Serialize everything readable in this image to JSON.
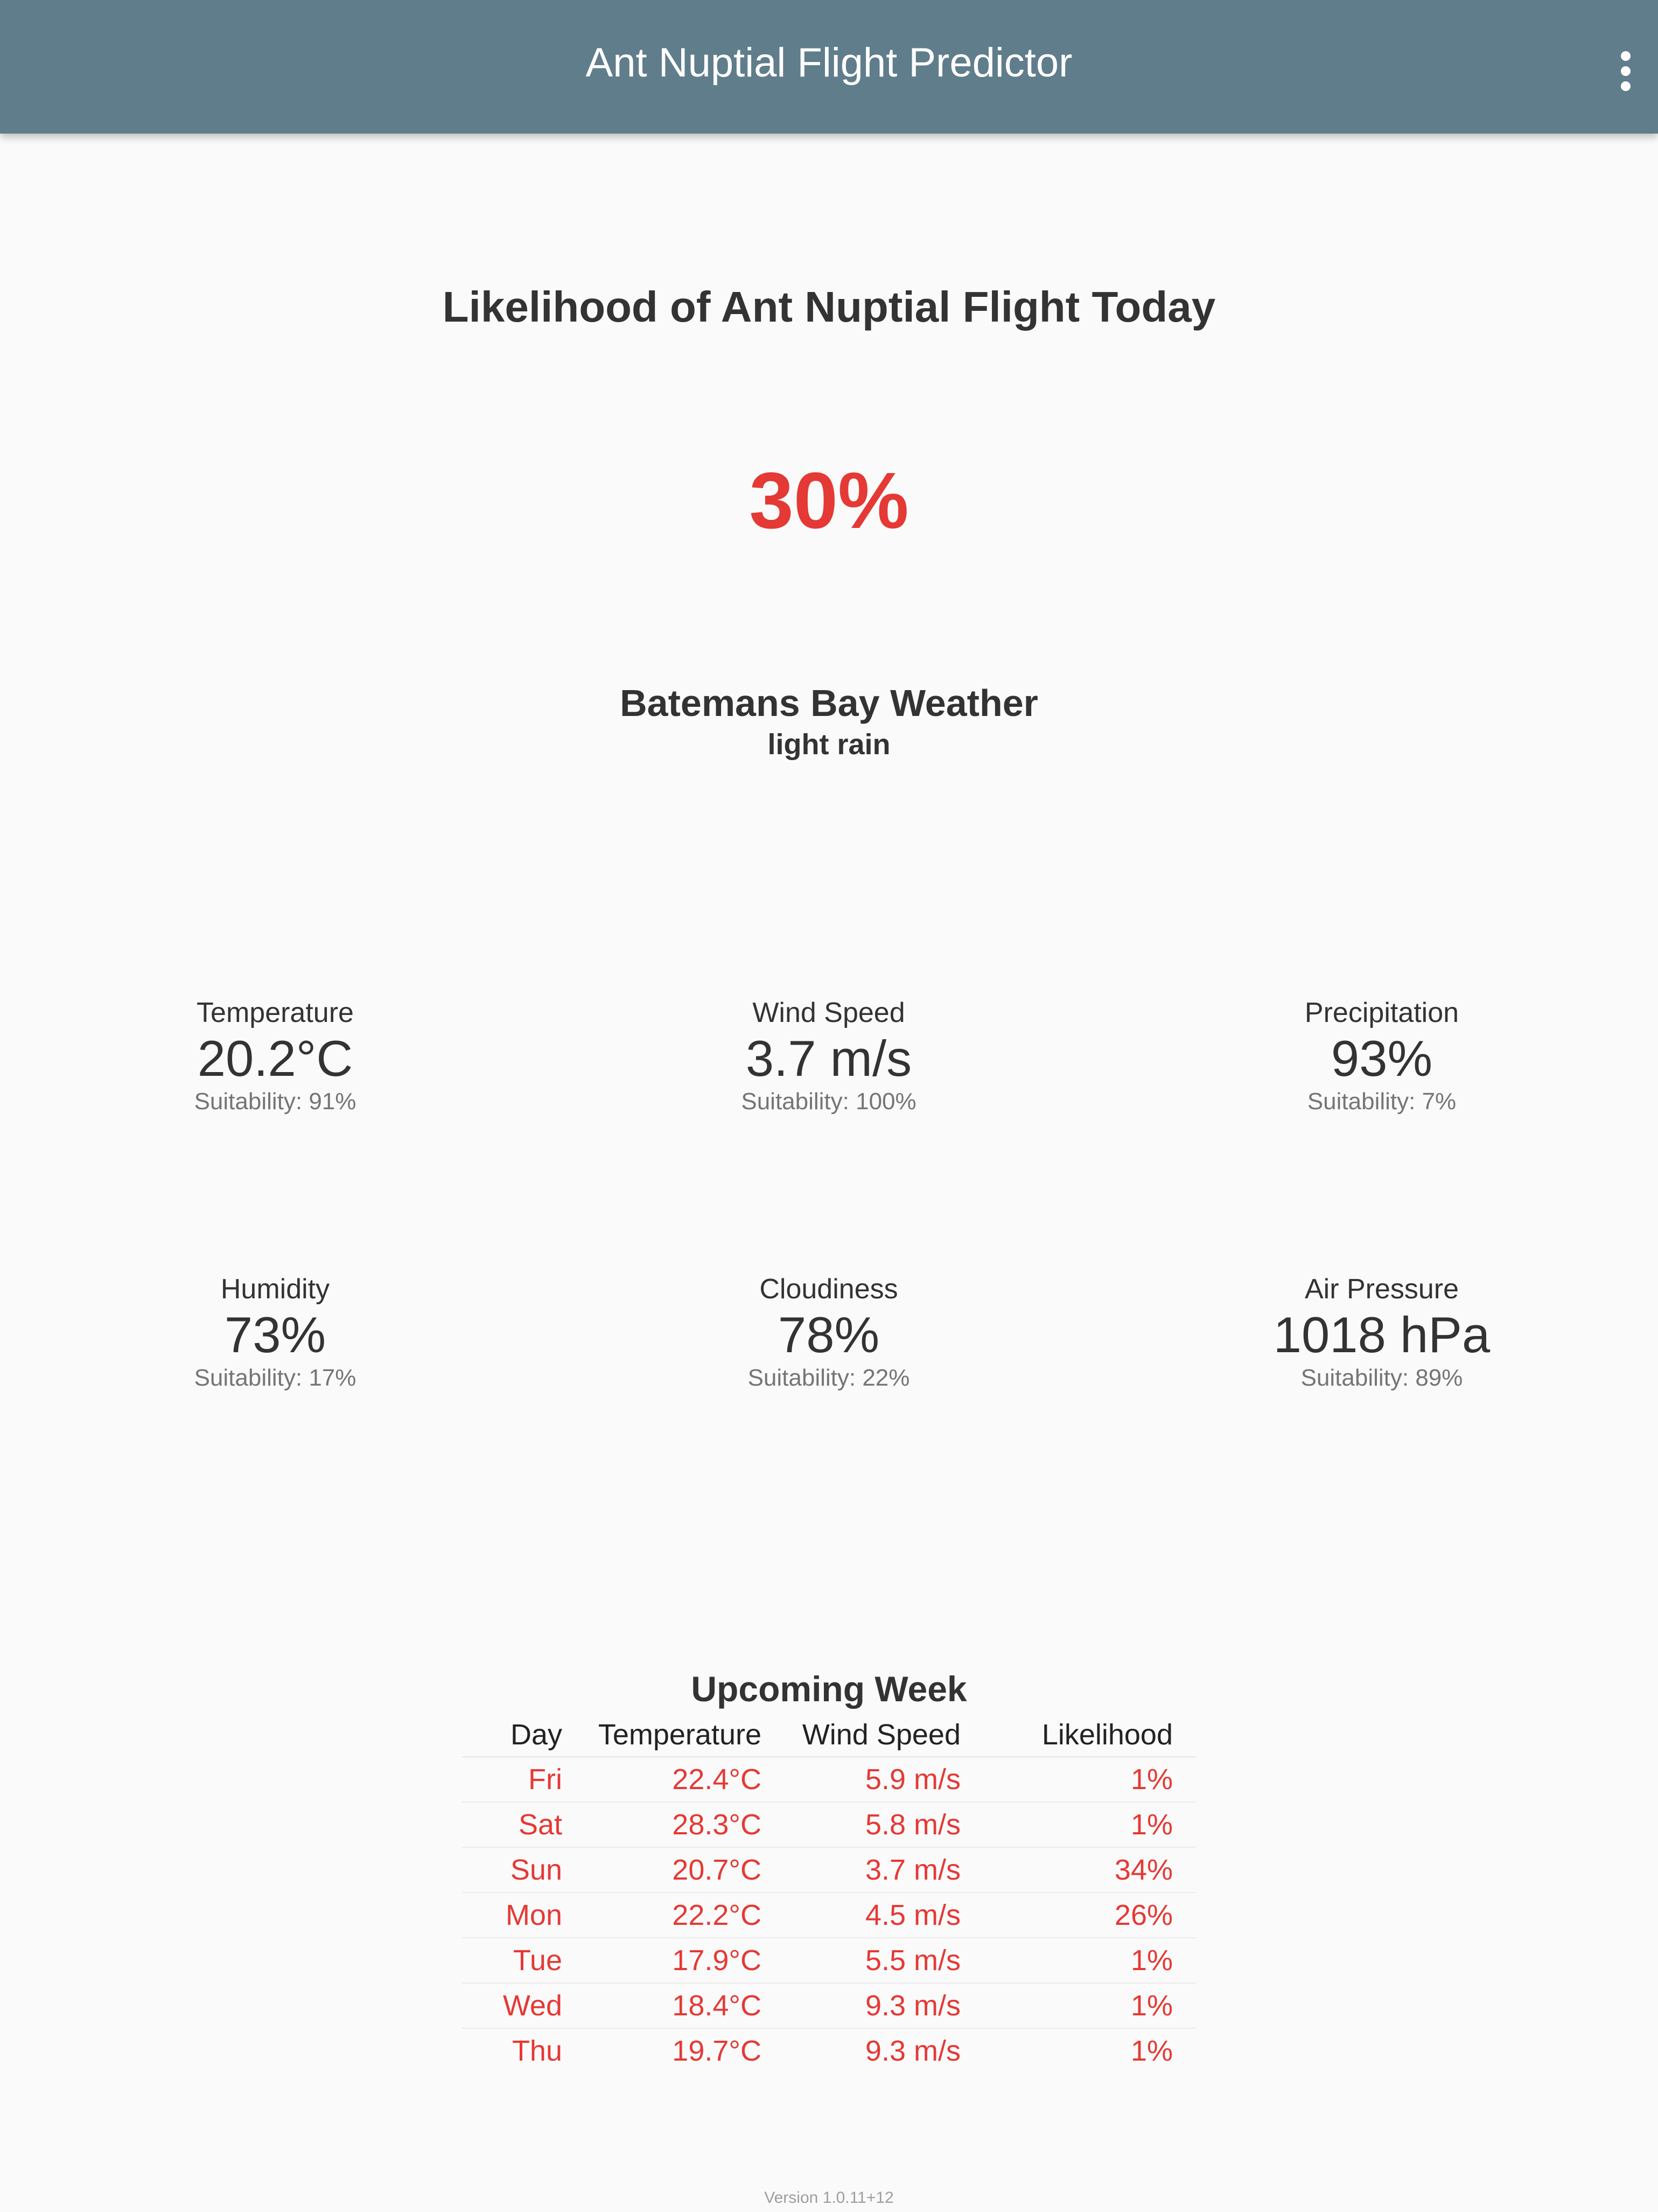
{
  "app": {
    "title": "Ant Nuptial Flight Predictor",
    "menu_icon": "more-vert-icon",
    "bar_color": "#607d8b"
  },
  "today": {
    "headline": "Likelihood of Ant Nuptial Flight Today",
    "likelihood": "30%",
    "likelihood_color": "#e53935"
  },
  "location": {
    "name": "Batemans Bay Weather",
    "condition": "light rain"
  },
  "metrics": [
    {
      "label": "Temperature",
      "value": "20.2°C",
      "suitability": "Suitability: 91%"
    },
    {
      "label": "Wind Speed",
      "value": "3.7 m/s",
      "suitability": "Suitability: 100%"
    },
    {
      "label": "Precipitation",
      "value": "93%",
      "suitability": "Suitability: 7%"
    },
    {
      "label": "Humidity",
      "value": "73%",
      "suitability": "Suitability: 17%"
    },
    {
      "label": "Cloudiness",
      "value": "78%",
      "suitability": "Suitability: 22%"
    },
    {
      "label": "Air Pressure",
      "value": "1018 hPa",
      "suitability": "Suitability: 89%"
    }
  ],
  "week": {
    "title": "Upcoming Week",
    "columns": [
      "Day",
      "Temperature",
      "Wind Speed",
      "Likelihood"
    ],
    "rows": [
      [
        "Fri",
        "22.4°C",
        "5.9 m/s",
        "1%"
      ],
      [
        "Sat",
        "28.3°C",
        "5.8 m/s",
        "1%"
      ],
      [
        "Sun",
        "20.7°C",
        "3.7 m/s",
        "34%"
      ],
      [
        "Mon",
        "22.2°C",
        "4.5 m/s",
        "26%"
      ],
      [
        "Tue",
        "17.9°C",
        "5.5 m/s",
        "1%"
      ],
      [
        "Wed",
        "18.4°C",
        "9.3 m/s",
        "1%"
      ],
      [
        "Thu",
        "19.7°C",
        "9.3 m/s",
        "1%"
      ]
    ]
  },
  "footer": {
    "version": "Version 1.0.11+12"
  }
}
